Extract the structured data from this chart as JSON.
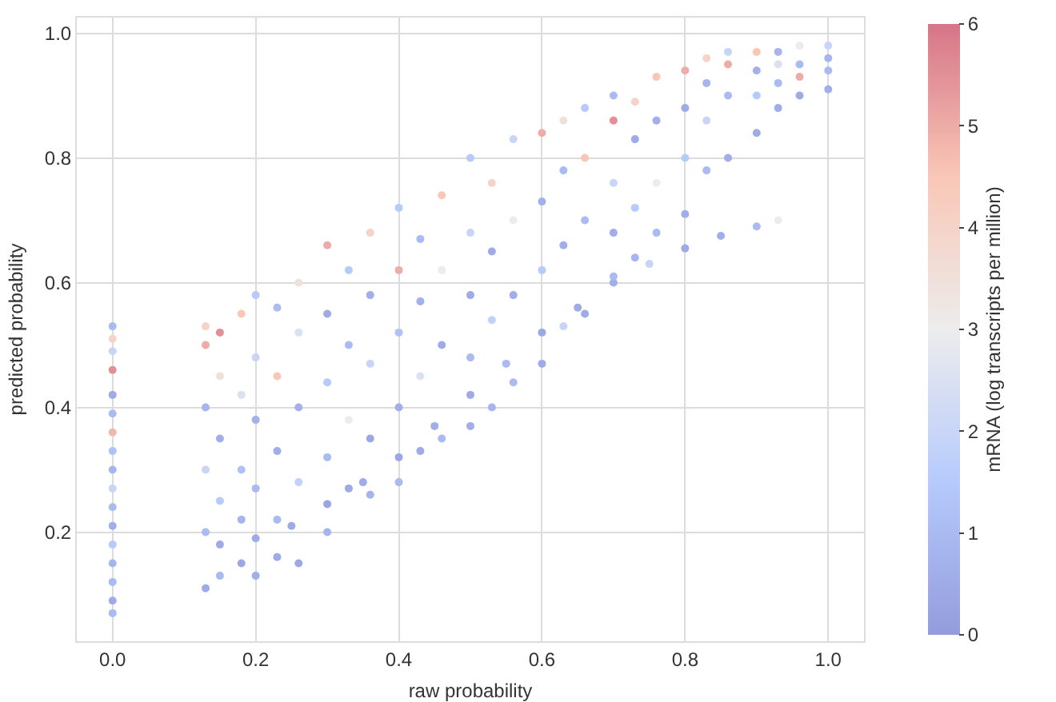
{
  "chart_data": {
    "type": "scatter",
    "xlabel": "raw probability",
    "ylabel": "predicted probability",
    "clabel": "mRNA (log transcripts per million)",
    "x": [
      0,
      0,
      0,
      0,
      0,
      0,
      0,
      0,
      0,
      0,
      0,
      0,
      0,
      0,
      0,
      0,
      0,
      0.25,
      0.3,
      0.35,
      0.4,
      0.45,
      0.5,
      0.55,
      0.6,
      0.65,
      0.7,
      0.75,
      0.8,
      0.85,
      0.9,
      0.93,
      0.13,
      0.13,
      0.13,
      0.13,
      0.13,
      0.13,
      0.15,
      0.15,
      0.15,
      0.15,
      0.15,
      0.15,
      0.18,
      0.18,
      0.18,
      0.18,
      0.18,
      0.2,
      0.2,
      0.2,
      0.2,
      0.2,
      0.2,
      0.23,
      0.23,
      0.23,
      0.23,
      0.23,
      0.26,
      0.26,
      0.26,
      0.26,
      0.26,
      0.3,
      0.3,
      0.3,
      0.3,
      0.3,
      0.33,
      0.33,
      0.33,
      0.33,
      0.36,
      0.36,
      0.36,
      0.36,
      0.36,
      0.4,
      0.4,
      0.4,
      0.4,
      0.4,
      0.43,
      0.43,
      0.43,
      0.43,
      0.46,
      0.46,
      0.46,
      0.46,
      0.5,
      0.5,
      0.5,
      0.5,
      0.5,
      0.53,
      0.53,
      0.53,
      0.53,
      0.56,
      0.56,
      0.56,
      0.56,
      0.6,
      0.6,
      0.6,
      0.6,
      0.63,
      0.63,
      0.63,
      0.63,
      0.66,
      0.66,
      0.66,
      0.66,
      0.7,
      0.7,
      0.7,
      0.7,
      0.7,
      0.73,
      0.73,
      0.73,
      0.73,
      0.76,
      0.76,
      0.76,
      0.76,
      0.8,
      0.8,
      0.8,
      0.8,
      0.83,
      0.83,
      0.83,
      0.83,
      0.86,
      0.86,
      0.86,
      0.86,
      0.9,
      0.9,
      0.9,
      0.9,
      0.93,
      0.93,
      0.93,
      0.93,
      0.96,
      0.96,
      0.96,
      0.96,
      1,
      1,
      1,
      1
    ],
    "values": [
      0.07,
      0.09,
      0.12,
      0.15,
      0.18,
      0.21,
      0.24,
      0.27,
      0.3,
      0.33,
      0.36,
      0.39,
      0.42,
      0.46,
      0.49,
      0.51,
      0.53,
      0.21,
      0.245,
      0.28,
      0.32,
      0.37,
      0.42,
      0.47,
      0.52,
      0.56,
      0.6,
      0.63,
      0.655,
      0.675,
      0.69,
      0.7,
      0.11,
      0.2,
      0.3,
      0.4,
      0.5,
      0.53,
      0.13,
      0.18,
      0.25,
      0.35,
      0.45,
      0.52,
      0.15,
      0.22,
      0.3,
      0.42,
      0.55,
      0.13,
      0.19,
      0.27,
      0.38,
      0.48,
      0.58,
      0.16,
      0.22,
      0.33,
      0.45,
      0.56,
      0.15,
      0.28,
      0.4,
      0.52,
      0.6,
      0.2,
      0.32,
      0.44,
      0.55,
      0.66,
      0.27,
      0.38,
      0.5,
      0.62,
      0.26,
      0.35,
      0.47,
      0.58,
      0.68,
      0.28,
      0.4,
      0.52,
      0.62,
      0.72,
      0.33,
      0.45,
      0.57,
      0.67,
      0.35,
      0.5,
      0.62,
      0.74,
      0.37,
      0.48,
      0.58,
      0.68,
      0.8,
      0.4,
      0.54,
      0.65,
      0.76,
      0.44,
      0.58,
      0.7,
      0.83,
      0.47,
      0.62,
      0.73,
      0.84,
      0.53,
      0.66,
      0.78,
      0.86,
      0.55,
      0.7,
      0.8,
      0.88,
      0.61,
      0.68,
      0.76,
      0.86,
      0.9,
      0.64,
      0.72,
      0.83,
      0.89,
      0.68,
      0.76,
      0.86,
      0.93,
      0.71,
      0.8,
      0.88,
      0.94,
      0.78,
      0.86,
      0.92,
      0.96,
      0.8,
      0.9,
      0.95,
      0.97,
      0.84,
      0.9,
      0.94,
      0.97,
      0.88,
      0.92,
      0.95,
      0.97,
      0.9,
      0.93,
      0.95,
      0.98,
      0.91,
      0.94,
      0.96,
      0.98
    ],
    "cvalues": [
      1,
      0.5,
      1,
      0.8,
      1.5,
      0.6,
      1,
      2,
      0.8,
      1.2,
      4.8,
      1,
      0.5,
      5.5,
      2,
      4,
      1,
      0.5,
      0.3,
      0.5,
      0.4,
      0.6,
      0.5,
      1,
      0.4,
      0.5,
      0.6,
      2,
      0.5,
      0.6,
      1,
      3,
      0.5,
      1,
      2,
      0.8,
      5,
      4,
      1,
      0.5,
      1.5,
      0.6,
      3.5,
      5.5,
      0.4,
      0.8,
      1.2,
      2.5,
      4.5,
      0.6,
      0.5,
      1,
      0.7,
      2,
      1.5,
      0.5,
      1,
      0.6,
      4.5,
      1,
      0.4,
      1.8,
      0.7,
      2.5,
      3.5,
      0.8,
      1,
      1.5,
      0.5,
      5,
      0.5,
      3,
      1,
      1.5,
      0.8,
      0.4,
      2,
      0.6,
      4,
      1,
      0.6,
      1.2,
      5,
      1.5,
      0.5,
      2.5,
      0.7,
      1,
      1,
      0.5,
      3,
      4.5,
      0.6,
      1,
      0.5,
      2,
      1.5,
      0.8,
      1.8,
      0.5,
      4,
      1,
      0.6,
      3,
      2,
      0.5,
      1.5,
      0.7,
      5,
      2,
      0.6,
      1,
      3.5,
      0.5,
      1,
      4.5,
      1.5,
      1,
      0.6,
      2,
      5.5,
      1,
      0.8,
      1.5,
      0.5,
      4,
      1,
      3,
      0.6,
      4.5,
      0.6,
      1.5,
      0.5,
      5,
      1,
      2,
      0.8,
      4,
      0.6,
      1,
      5,
      2,
      0.5,
      1.5,
      0.7,
      4.5,
      0.6,
      1,
      2.5,
      0.8,
      0.5,
      5,
      1,
      3,
      0.6,
      1,
      0.8,
      2
    ],
    "xlim": [
      -0.05,
      1.05
    ],
    "ylim": [
      0.025,
      1.025
    ],
    "xticks": [
      {
        "value": 0,
        "label": "0.0"
      },
      0.2,
      0.4,
      0.6,
      0.8,
      {
        "value": 1,
        "label": "1.0"
      }
    ],
    "yticks": [
      0.2,
      0.4,
      0.6,
      0.8,
      {
        "value": 1,
        "label": "1.0"
      }
    ],
    "clim": [
      0,
      6
    ],
    "cticks": [
      0,
      1,
      2,
      3,
      4,
      5,
      6
    ],
    "grid": true,
    "marker": "circle"
  }
}
